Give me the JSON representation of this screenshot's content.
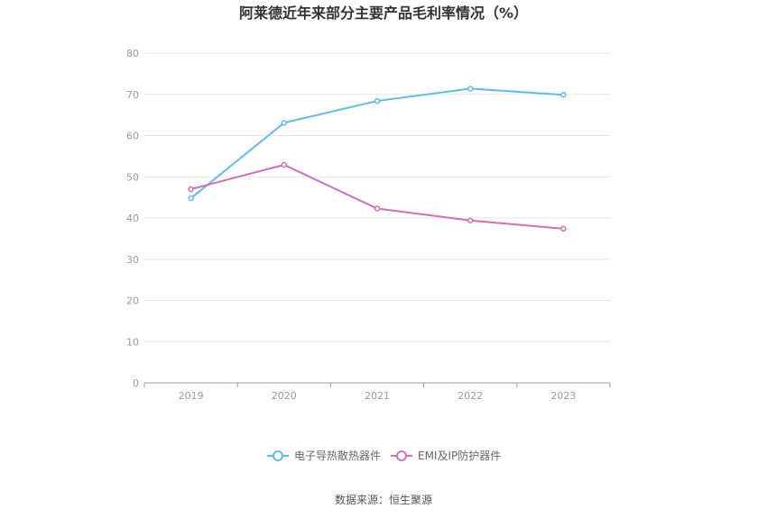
{
  "chart_data": {
    "type": "line",
    "title": "阿莱德近年来部分主要产品毛利率情况（%）",
    "categories": [
      "2019",
      "2020",
      "2021",
      "2022",
      "2023"
    ],
    "ylim": [
      0,
      80
    ],
    "yticks": [
      "0",
      "10",
      "20",
      "30",
      "40",
      "50",
      "60",
      "70",
      "80"
    ],
    "grid": true,
    "legend_position": "bottom",
    "series": [
      {
        "name": "电子导热散热器件",
        "color": "#5bbcf0",
        "values": [
          44.8,
          63.1,
          68.4,
          71.4,
          69.9
        ]
      },
      {
        "name": "EMI及IP防护器件",
        "color": "#d36eb8",
        "values": [
          47.0,
          52.9,
          42.3,
          39.4,
          37.4
        ]
      }
    ]
  },
  "source": "数据来源：恒生聚源"
}
